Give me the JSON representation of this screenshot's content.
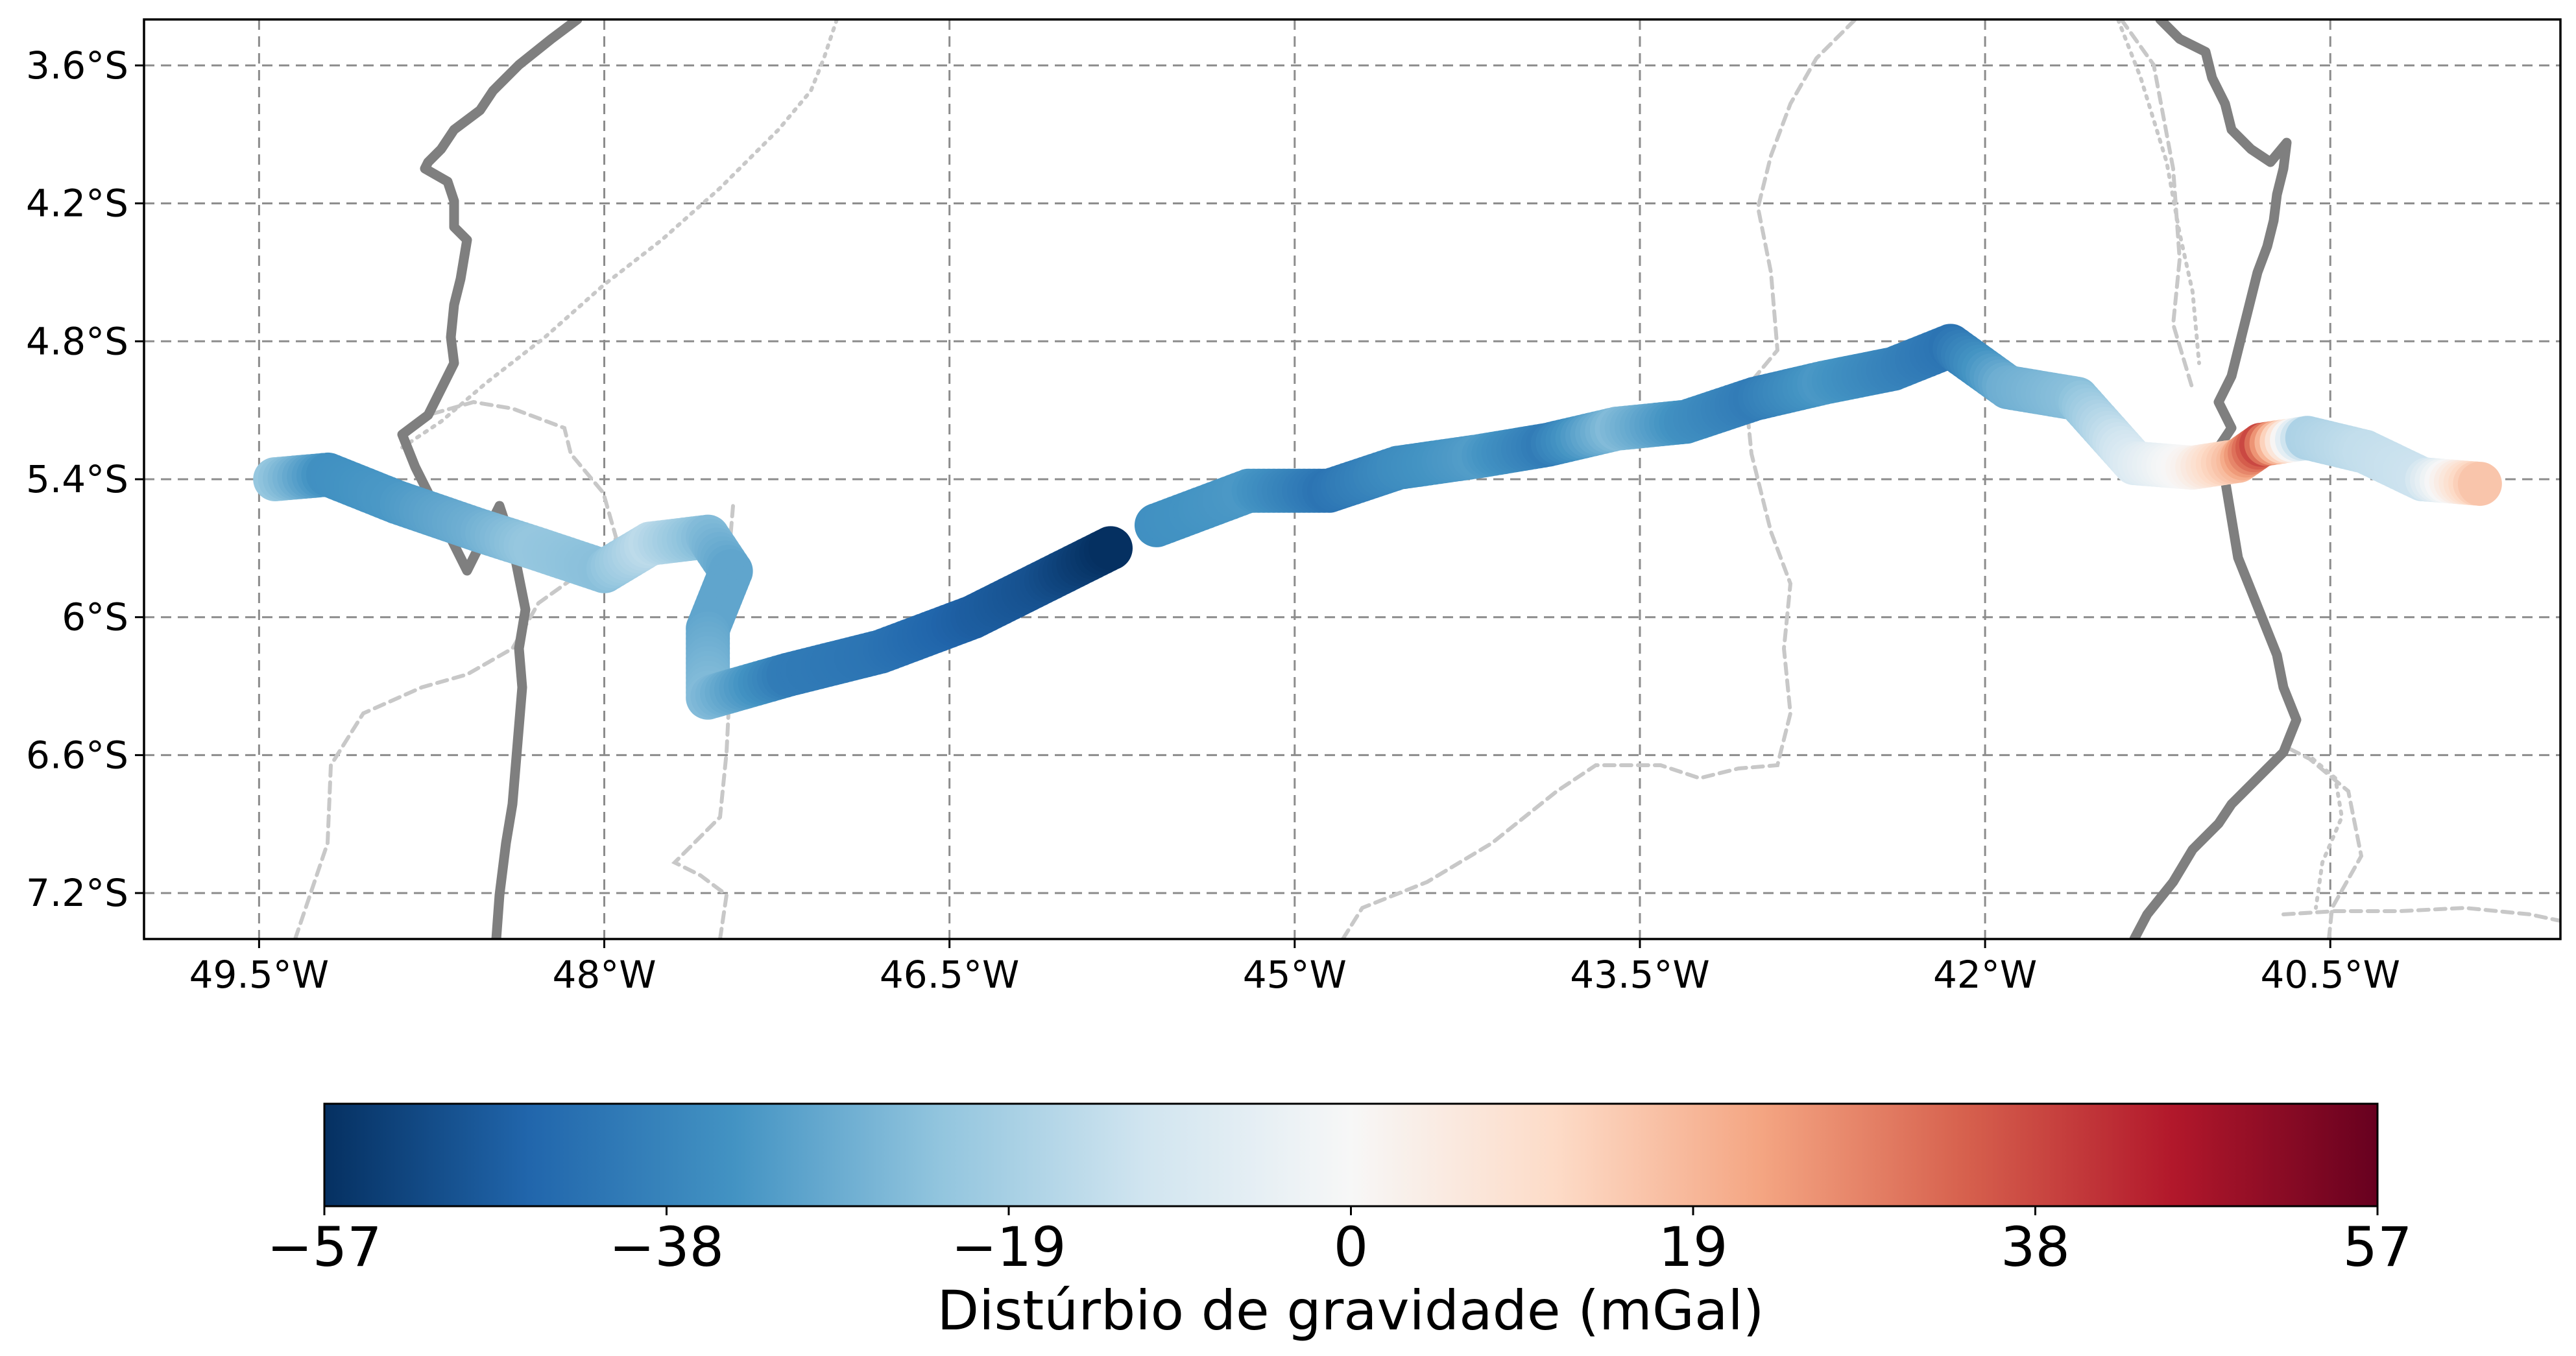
{
  "map": {
    "x_ticks": [
      "49.5°W",
      "48°W",
      "46.5°W",
      "45°W",
      "43.5°W",
      "42°W",
      "40.5°W"
    ],
    "y_ticks": [
      "3.6°S",
      "4.2°S",
      "4.8°S",
      "5.4°S",
      "6°S",
      "6.6°S",
      "7.2°S"
    ],
    "grid": true,
    "extent": {
      "lon": [
        -50.0,
        -39.5
      ],
      "lat": [
        -7.4,
        -3.4
      ]
    }
  },
  "colorbar": {
    "label": "Distúrbio de gravidade (mGal)",
    "tick_labels": [
      "−57",
      "−38",
      "−19",
      "0",
      "19",
      "38",
      "57"
    ],
    "range": [
      -57,
      57
    ],
    "colormap": "RdBu_r",
    "colors": [
      "#053061",
      "#2166ac",
      "#4393c3",
      "#92c5de",
      "#d1e5f0",
      "#f7f7f7",
      "#fddbc7",
      "#f4a582",
      "#d6604d",
      "#b2182b",
      "#67001f"
    ]
  },
  "chart_data": {
    "type": "scatter",
    "xlabel": "",
    "ylabel": "",
    "value_label": "Distúrbio de gravidade (mGal)",
    "vmin": -57,
    "vmax": 57,
    "track": [
      {
        "lon": -49.43,
        "lat": -5.4,
        "v": -22
      },
      {
        "lon": -49.2,
        "lat": -5.38,
        "v": -35
      },
      {
        "lon": -48.9,
        "lat": -5.5,
        "v": -33
      },
      {
        "lon": -48.55,
        "lat": -5.62,
        "v": -28
      },
      {
        "lon": -48.3,
        "lat": -5.7,
        "v": -22
      },
      {
        "lon": -48.0,
        "lat": -5.8,
        "v": -24
      },
      {
        "lon": -47.8,
        "lat": -5.68,
        "v": -15
      },
      {
        "lon": -47.55,
        "lat": -5.65,
        "v": -25
      },
      {
        "lon": -47.45,
        "lat": -5.8,
        "v": -30
      },
      {
        "lon": -47.55,
        "lat": -6.05,
        "v": -30
      },
      {
        "lon": -47.55,
        "lat": -6.35,
        "v": -25
      },
      {
        "lon": -47.2,
        "lat": -6.25,
        "v": -40
      },
      {
        "lon": -46.8,
        "lat": -6.15,
        "v": -42
      },
      {
        "lon": -46.4,
        "lat": -6.0,
        "v": -47
      },
      {
        "lon": -46.1,
        "lat": -5.85,
        "v": -50
      },
      {
        "lon": -45.8,
        "lat": -5.7,
        "v": -57
      },
      {
        "lon": -45.6,
        "lat": -5.6,
        "v": -35
      },
      {
        "lon": -45.2,
        "lat": -5.45,
        "v": -33
      },
      {
        "lon": -44.85,
        "lat": -5.45,
        "v": -42
      },
      {
        "lon": -44.55,
        "lat": -5.35,
        "v": -36
      },
      {
        "lon": -44.2,
        "lat": -5.3,
        "v": -32
      },
      {
        "lon": -43.9,
        "lat": -5.25,
        "v": -40
      },
      {
        "lon": -43.6,
        "lat": -5.18,
        "v": -25
      },
      {
        "lon": -43.3,
        "lat": -5.15,
        "v": -35
      },
      {
        "lon": -43.0,
        "lat": -5.05,
        "v": -40
      },
      {
        "lon": -42.7,
        "lat": -4.98,
        "v": -33
      },
      {
        "lon": -42.4,
        "lat": -4.92,
        "v": -38
      },
      {
        "lon": -42.15,
        "lat": -4.82,
        "v": -42
      },
      {
        "lon": -41.9,
        "lat": -5.0,
        "v": -28
      },
      {
        "lon": -41.6,
        "lat": -5.05,
        "v": -24
      },
      {
        "lon": -41.35,
        "lat": -5.33,
        "v": -8
      },
      {
        "lon": -41.1,
        "lat": -5.35,
        "v": 2
      },
      {
        "lon": -40.9,
        "lat": -5.32,
        "v": 18
      },
      {
        "lon": -40.8,
        "lat": -5.25,
        "v": 38
      },
      {
        "lon": -40.6,
        "lat": -5.22,
        "v": -18
      },
      {
        "lon": -40.35,
        "lat": -5.28,
        "v": -14
      },
      {
        "lon": -40.1,
        "lat": -5.4,
        "v": -12
      },
      {
        "lon": -39.85,
        "lat": -5.42,
        "v": 16
      }
    ]
  }
}
